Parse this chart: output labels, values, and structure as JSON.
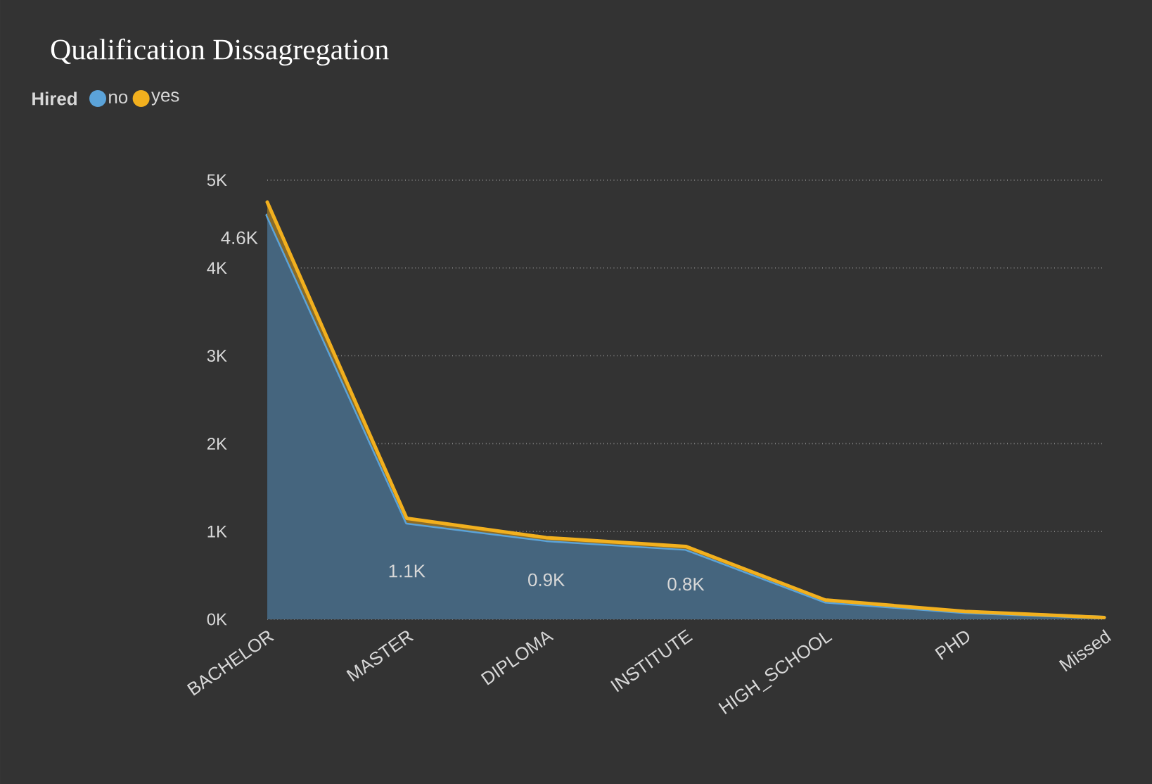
{
  "chart_data": {
    "type": "area",
    "title": "Qualification Dissagregation",
    "legend_title": "Hired",
    "stacked": true,
    "categories": [
      "BACHELOR",
      "MASTER",
      "DIPLOMA",
      "INSTITUTE",
      "HIGH_SCHOOL",
      "PHD",
      "Missed"
    ],
    "series": [
      {
        "name": "no",
        "color": "#5ba3d9",
        "values": [
          4.6,
          1.1,
          0.9,
          0.8,
          0.2,
          0.08,
          0.02
        ],
        "value_labels": [
          "4.6K",
          "1.1K",
          "0.9K",
          "0.8K",
          null,
          null,
          null
        ]
      },
      {
        "name": "yes",
        "color": "#f2b01e",
        "values": [
          0.15,
          0.05,
          0.03,
          0.03,
          0.02,
          0.01,
          0.0
        ]
      }
    ],
    "ylim": [
      0,
      5
    ],
    "yticks": [
      {
        "value": 0,
        "label": "0K"
      },
      {
        "value": 1,
        "label": "1K"
      },
      {
        "value": 2,
        "label": "2K"
      },
      {
        "value": 3,
        "label": "3K"
      },
      {
        "value": 4,
        "label": "4K"
      },
      {
        "value": 5,
        "label": "5K"
      }
    ],
    "grid": "y",
    "legend": "top left"
  }
}
